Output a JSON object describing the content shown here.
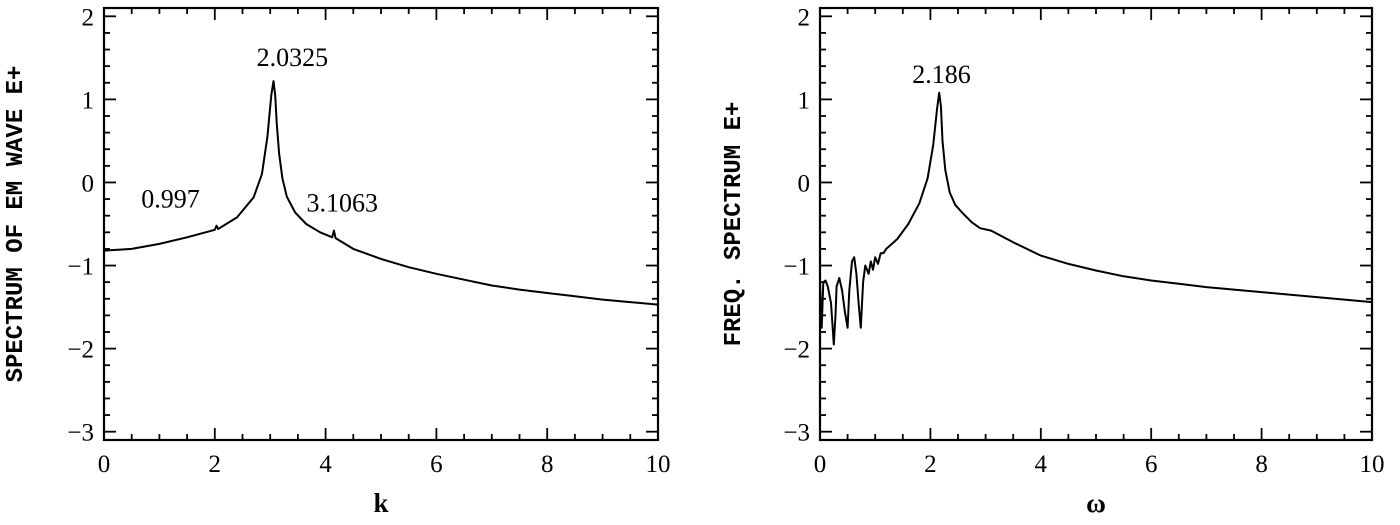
{
  "chart_data": [
    {
      "type": "line",
      "xlabel": "k",
      "ylabel": "SPECTRUM OF EM WAVE E+",
      "xlim": [
        0,
        10
      ],
      "ylim": [
        -3.1,
        2.1
      ],
      "xticks": [
        "0",
        "2",
        "4",
        "6",
        "8",
        "10"
      ],
      "yticks": [
        "2",
        "1",
        "0",
        "−1",
        "−2",
        "−3"
      ],
      "annotations": [
        {
          "text": "2.0325",
          "x": 3.4,
          "y": 1.4
        },
        {
          "text": "0.997",
          "x": 1.2,
          "y": -0.3
        },
        {
          "text": "3.1063",
          "x": 4.3,
          "y": -0.35
        }
      ],
      "series": [
        {
          "x": [
            0,
            0.5,
            1.0,
            1.5,
            2.0,
            2.03,
            2.06,
            2.4,
            2.7,
            2.85,
            2.95,
            3.02,
            3.06,
            3.09,
            3.12,
            3.16,
            3.22,
            3.3,
            3.45,
            3.65,
            3.9,
            4.12,
            4.15,
            4.18,
            4.5,
            5.0,
            5.5,
            6.0,
            6.5,
            7.0,
            7.5,
            8.0,
            8.5,
            9.0,
            9.5,
            10.0
          ],
          "y": [
            -0.82,
            -0.8,
            -0.74,
            -0.66,
            -0.57,
            -0.52,
            -0.56,
            -0.42,
            -0.18,
            0.1,
            0.55,
            1.05,
            1.22,
            1.05,
            0.7,
            0.35,
            0.05,
            -0.17,
            -0.36,
            -0.5,
            -0.6,
            -0.66,
            -0.58,
            -0.67,
            -0.8,
            -0.92,
            -1.02,
            -1.1,
            -1.17,
            -1.24,
            -1.29,
            -1.33,
            -1.37,
            -1.41,
            -1.44,
            -1.47
          ]
        }
      ]
    },
    {
      "type": "line",
      "xlabel": "ω",
      "ylabel": "FREQ. SPECTRUM E+",
      "xlim": [
        0,
        10
      ],
      "ylim": [
        -3.1,
        2.1
      ],
      "xticks": [
        "0",
        "2",
        "4",
        "6",
        "8",
        "10"
      ],
      "yticks": [
        "2",
        "1",
        "0",
        "−1",
        "−2",
        "−3"
      ],
      "annotations": [
        {
          "text": "2.186",
          "x": 2.2,
          "y": 1.2
        }
      ],
      "series": [
        {
          "x": [
            0,
            0.03,
            0.06,
            0.1,
            0.14,
            0.2,
            0.25,
            0.28,
            0.3,
            0.35,
            0.4,
            0.45,
            0.5,
            0.53,
            0.58,
            0.62,
            0.66,
            0.7,
            0.74,
            0.78,
            0.82,
            0.88,
            0.92,
            0.96,
            1.0,
            1.05,
            1.1,
            1.15,
            1.2,
            1.4,
            1.6,
            1.8,
            1.95,
            2.05,
            2.12,
            2.16,
            2.19,
            2.22,
            2.27,
            2.35,
            2.45,
            2.6,
            2.75,
            2.9,
            3.1,
            3.5,
            4.0,
            4.5,
            5.0,
            5.5,
            6.0,
            6.5,
            7.0,
            7.5,
            8.0,
            8.5,
            9.0,
            9.5,
            10.0
          ],
          "y": [
            -1.2,
            -1.75,
            -1.2,
            -1.18,
            -1.25,
            -1.45,
            -1.95,
            -1.6,
            -1.25,
            -1.15,
            -1.3,
            -1.55,
            -1.75,
            -1.3,
            -0.95,
            -0.9,
            -1.1,
            -1.45,
            -1.75,
            -1.2,
            -1.0,
            -1.1,
            -0.95,
            -1.05,
            -0.9,
            -0.98,
            -0.85,
            -0.85,
            -0.8,
            -0.68,
            -0.5,
            -0.25,
            0.05,
            0.45,
            0.88,
            1.08,
            0.92,
            0.5,
            0.15,
            -0.12,
            -0.27,
            -0.38,
            -0.48,
            -0.55,
            -0.58,
            -0.72,
            -0.88,
            -0.98,
            -1.06,
            -1.13,
            -1.18,
            -1.22,
            -1.26,
            -1.29,
            -1.32,
            -1.35,
            -1.38,
            -1.41,
            -1.44
          ]
        }
      ]
    }
  ]
}
